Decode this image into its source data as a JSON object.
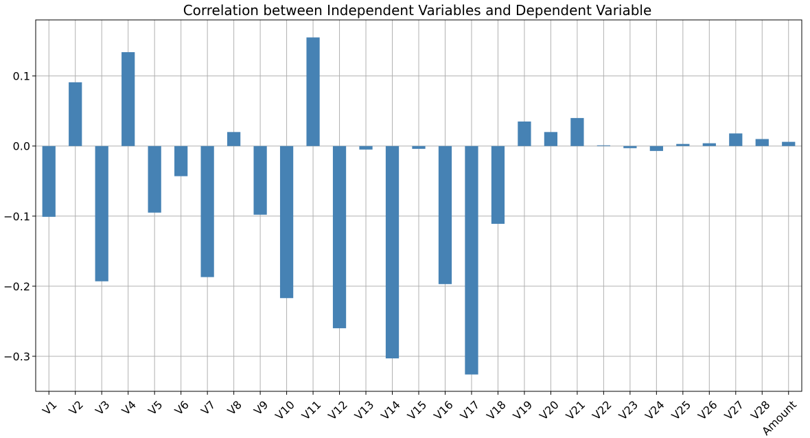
{
  "chart_data": {
    "type": "bar",
    "title": "Correlation between Independent Variables and Dependent Variable",
    "xlabel": "",
    "ylabel": "",
    "categories": [
      "V1",
      "V2",
      "V3",
      "V4",
      "V5",
      "V6",
      "V7",
      "V8",
      "V9",
      "V10",
      "V11",
      "V12",
      "V13",
      "V14",
      "V15",
      "V16",
      "V17",
      "V18",
      "V19",
      "V20",
      "V21",
      "V22",
      "V23",
      "V24",
      "V25",
      "V26",
      "V27",
      "V28",
      "Amount"
    ],
    "values": [
      -0.101,
      0.091,
      -0.193,
      0.134,
      -0.095,
      -0.043,
      -0.187,
      0.02,
      -0.098,
      -0.217,
      0.155,
      -0.26,
      -0.005,
      -0.303,
      -0.004,
      -0.197,
      -0.326,
      -0.111,
      0.035,
      0.02,
      0.04,
      0.001,
      -0.003,
      -0.007,
      0.003,
      0.004,
      0.018,
      0.01,
      0.006
    ],
    "ylim": [
      -0.35,
      0.18
    ],
    "yticks": [
      0.1,
      0.0,
      -0.1,
      -0.2,
      -0.3
    ],
    "ytick_labels": [
      "0.1",
      "0.0",
      "−0.1",
      "−0.2",
      "−0.3"
    ],
    "grid": true,
    "bar_color": "#4682b4"
  }
}
